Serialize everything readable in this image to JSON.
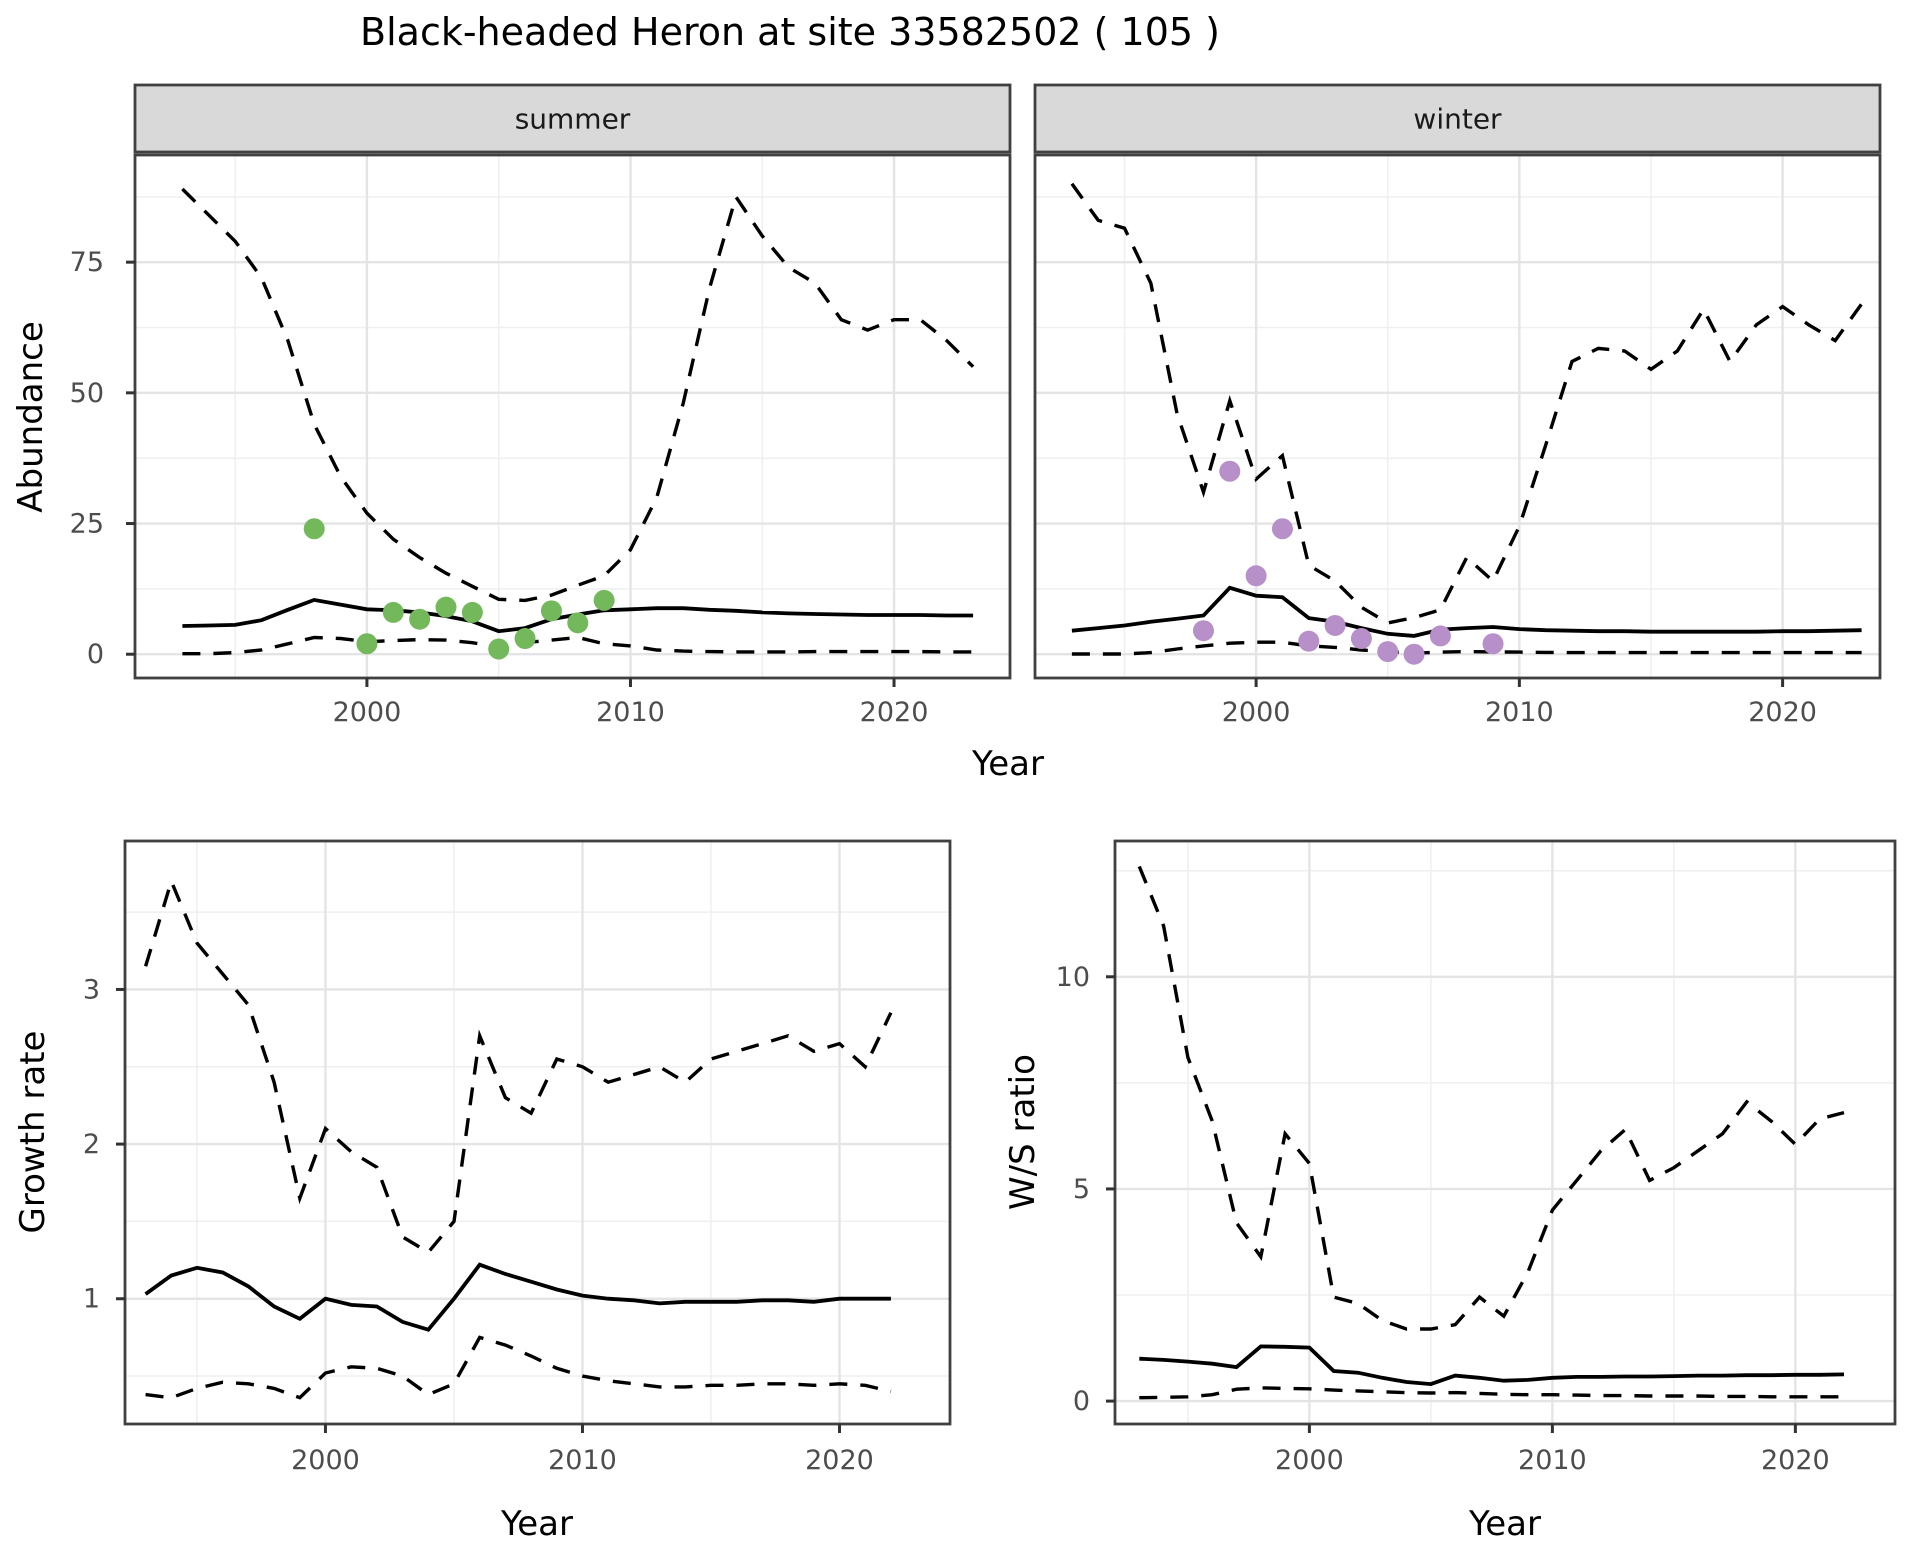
{
  "title": "Black-headed Heron at site 33582502 ( 105 )",
  "colors": {
    "summer_points": "#74b85c",
    "winter_points": "#b78fc9",
    "line": "#000000",
    "strip_bg": "#d9d9d9",
    "strip_border": "#404040",
    "panel_border": "#404040",
    "grid_major": "#e4e4e4",
    "grid_minor": "#efefef",
    "tick_text": "#4d4d4d",
    "axis_text": "#000000",
    "strip_text": "#1a1a1a",
    "panel_bg": "#ffffff"
  },
  "chart_data": {
    "type": "line",
    "legend_position": "none",
    "grid": "on",
    "facets": [
      "summer",
      "winter"
    ],
    "line_styles": {
      "upper": "dashed",
      "median": "solid",
      "lower": "dashed"
    },
    "top_row": {
      "ylabel": "Abundance",
      "xlabel": "Year",
      "x_ticks": [
        2000,
        2010,
        2020
      ],
      "x_minor": [
        1995,
        2005,
        2015
      ],
      "y_ticks": [
        0,
        25,
        50,
        75
      ],
      "y_minor": [
        12.5,
        37.5,
        62.5,
        87.5
      ],
      "panels": [
        {
          "facet": "summer",
          "xlim": [
            1991.2,
            2024.4
          ],
          "ylim": [
            -4.55,
            95.5
          ],
          "years": [
            1993,
            1994,
            1995,
            1996,
            1997,
            1998,
            1999,
            2000,
            2001,
            2002,
            2003,
            2004,
            2005,
            2006,
            2007,
            2008,
            2009,
            2010,
            2011,
            2012,
            2013,
            2014,
            2015,
            2016,
            2017,
            2018,
            2019,
            2020,
            2021,
            2022,
            2023
          ],
          "upper": [
            89,
            84,
            79,
            72,
            60,
            44,
            34,
            27,
            22,
            18.5,
            15.5,
            13,
            10.5,
            10.3,
            11.3,
            13.2,
            15,
            20,
            30,
            48,
            70,
            87.5,
            80,
            74,
            71,
            64,
            62,
            64,
            64,
            60,
            55
          ],
          "median": [
            5.4,
            5.5,
            5.6,
            6.5,
            8.5,
            10.4,
            9.5,
            8.6,
            8.4,
            8,
            7.3,
            6.3,
            4.4,
            5,
            6.7,
            7.6,
            8.4,
            8.6,
            8.8,
            8.8,
            8.5,
            8.3,
            8,
            7.8,
            7.7,
            7.6,
            7.5,
            7.5,
            7.5,
            7.4,
            7.4
          ],
          "lower": [
            0.1,
            0.1,
            0.3,
            0.8,
            2,
            3.2,
            3,
            2.4,
            2.6,
            2.8,
            2.7,
            2.2,
            1.4,
            2.2,
            2.7,
            3.2,
            2,
            1.6,
            0.8,
            0.6,
            0.5,
            0.45,
            0.45,
            0.45,
            0.5,
            0.5,
            0.5,
            0.5,
            0.5,
            0.45,
            0.45
          ],
          "points": [
            [
              1998,
              24
            ],
            [
              2000,
              2
            ],
            [
              2001,
              8
            ],
            [
              2002,
              6.7
            ],
            [
              2003,
              9
            ],
            [
              2004,
              8
            ],
            [
              2005,
              1
            ],
            [
              2006,
              3
            ],
            [
              2007,
              8.3
            ],
            [
              2008,
              6
            ],
            [
              2009,
              10.3
            ]
          ],
          "point_color_key": "summer_points"
        },
        {
          "facet": "winter",
          "xlim": [
            1991.6,
            2023.7
          ],
          "ylim": [
            -4.55,
            95.5
          ],
          "years": [
            1993,
            1994,
            1995,
            1996,
            1997,
            1998,
            1999,
            2000,
            2001,
            2002,
            2003,
            2004,
            2005,
            2006,
            2007,
            2008,
            2009,
            2010,
            2011,
            2012,
            2013,
            2014,
            2015,
            2016,
            2017,
            2018,
            2019,
            2020,
            2021,
            2022,
            2023
          ],
          "upper": [
            90,
            83,
            81.5,
            71,
            46,
            31,
            48.5,
            33.5,
            38,
            17,
            14,
            9,
            6,
            7,
            8.5,
            18.5,
            14,
            24.5,
            40,
            56,
            58.5,
            58,
            54.5,
            58,
            66,
            56,
            63,
            66.5,
            63,
            60,
            67
          ],
          "median": [
            4.5,
            5,
            5.5,
            6.2,
            6.8,
            7.4,
            12.7,
            11.2,
            10.9,
            6.9,
            6.2,
            5,
            3.9,
            3.5,
            4.7,
            5,
            5.2,
            4.8,
            4.6,
            4.5,
            4.4,
            4.4,
            4.3,
            4.3,
            4.3,
            4.3,
            4.3,
            4.4,
            4.4,
            4.5,
            4.6
          ],
          "lower": [
            0.05,
            0.05,
            0.05,
            0.3,
            1,
            1.6,
            2.1,
            2.3,
            2.3,
            1.6,
            1.3,
            0.8,
            0.5,
            0.2,
            0.4,
            0.5,
            0.45,
            0.4,
            0.35,
            0.3,
            0.3,
            0.3,
            0.3,
            0.3,
            0.3,
            0.3,
            0.3,
            0.3,
            0.3,
            0.3,
            0.3
          ],
          "points": [
            [
              1998,
              4.5
            ],
            [
              1999,
              35
            ],
            [
              2000,
              15
            ],
            [
              2001,
              24
            ],
            [
              2002,
              2.5
            ],
            [
              2003,
              5.5
            ],
            [
              2004,
              3
            ],
            [
              2005,
              0.5
            ],
            [
              2006,
              0
            ],
            [
              2007,
              3.5
            ],
            [
              2009,
              2
            ]
          ],
          "point_color_key": "winter_points"
        }
      ]
    },
    "bottom_row": {
      "xlabel": "Year",
      "x_ticks": [
        2000,
        2010,
        2020
      ],
      "x_minor": [
        1995,
        2005,
        2015
      ],
      "panels": [
        {
          "ylabel": "Growth rate",
          "xlim": [
            1992.2,
            2024.3
          ],
          "ylim": [
            0.19,
            3.96
          ],
          "y_ticks": [
            1,
            2,
            3
          ],
          "y_minor": [
            0.5,
            1.5,
            2.5,
            3.5
          ],
          "years": [
            1993,
            1994,
            1995,
            1996,
            1997,
            1998,
            1999,
            2000,
            2001,
            2002,
            2003,
            2004,
            2005,
            2006,
            2007,
            2008,
            2009,
            2010,
            2011,
            2012,
            2013,
            2014,
            2015,
            2016,
            2017,
            2018,
            2019,
            2020,
            2021,
            2022
          ],
          "upper": [
            3.15,
            3.7,
            3.3,
            3.1,
            2.9,
            2.4,
            1.65,
            2.1,
            1.95,
            1.85,
            1.4,
            1.3,
            1.5,
            2.7,
            2.3,
            2.2,
            2.55,
            2.5,
            2.4,
            2.45,
            2.5,
            2.4,
            2.55,
            2.6,
            2.65,
            2.7,
            2.6,
            2.65,
            2.5,
            2.85
          ],
          "median": [
            1.03,
            1.15,
            1.2,
            1.17,
            1.08,
            0.95,
            0.87,
            1.0,
            0.96,
            0.95,
            0.85,
            0.8,
            1.0,
            1.22,
            1.16,
            1.11,
            1.06,
            1.02,
            1.0,
            0.99,
            0.97,
            0.98,
            0.98,
            0.98,
            0.99,
            0.99,
            0.98,
            1.0,
            1.0,
            1.0
          ],
          "lower": [
            0.38,
            0.36,
            0.42,
            0.46,
            0.45,
            0.42,
            0.36,
            0.52,
            0.56,
            0.55,
            0.5,
            0.38,
            0.45,
            0.75,
            0.7,
            0.63,
            0.55,
            0.5,
            0.47,
            0.45,
            0.43,
            0.43,
            0.44,
            0.44,
            0.45,
            0.45,
            0.44,
            0.45,
            0.44,
            0.4
          ]
        },
        {
          "ylabel": "W/S ratio",
          "xlim": [
            1992.0,
            2024.1
          ],
          "ylim": [
            -0.54,
            13.2
          ],
          "y_ticks": [
            0,
            5,
            10
          ],
          "y_minor": [
            2.5,
            7.5,
            12.5
          ],
          "years": [
            1993,
            1994,
            1995,
            1996,
            1997,
            1998,
            1999,
            2000,
            2001,
            2002,
            2003,
            2004,
            2005,
            2006,
            2007,
            2008,
            2009,
            2010,
            2011,
            2012,
            2013,
            2014,
            2015,
            2016,
            2017,
            2018,
            2019,
            2020,
            2021,
            2022
          ],
          "upper": [
            12.6,
            11.2,
            8.1,
            6.6,
            4.2,
            3.4,
            6.3,
            5.6,
            2.45,
            2.3,
            1.9,
            1.7,
            1.7,
            1.8,
            2.45,
            2.0,
            3.05,
            4.5,
            5.2,
            5.9,
            6.4,
            5.2,
            5.5,
            5.9,
            6.3,
            7.05,
            6.6,
            6.05,
            6.65,
            6.8
          ],
          "median": [
            1.0,
            0.97,
            0.93,
            0.88,
            0.8,
            1.29,
            1.28,
            1.26,
            0.71,
            0.67,
            0.55,
            0.45,
            0.4,
            0.6,
            0.55,
            0.48,
            0.5,
            0.55,
            0.57,
            0.57,
            0.58,
            0.58,
            0.59,
            0.6,
            0.6,
            0.61,
            0.61,
            0.62,
            0.62,
            0.63
          ],
          "lower": [
            0.08,
            0.09,
            0.1,
            0.15,
            0.28,
            0.31,
            0.3,
            0.29,
            0.26,
            0.24,
            0.22,
            0.2,
            0.19,
            0.2,
            0.18,
            0.16,
            0.15,
            0.15,
            0.14,
            0.13,
            0.13,
            0.12,
            0.12,
            0.12,
            0.11,
            0.11,
            0.1,
            0.1,
            0.1,
            0.1
          ]
        }
      ]
    }
  }
}
